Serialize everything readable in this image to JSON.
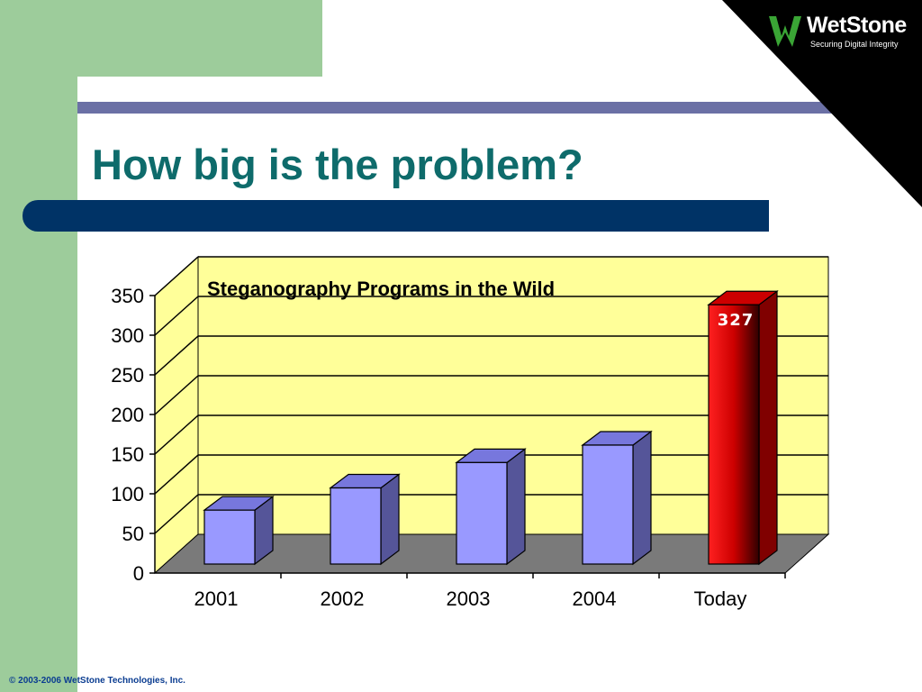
{
  "slide": {
    "title": "How big is the problem?",
    "logo_name": "WetStone",
    "logo_tagline": "Securing Digital Integrity",
    "footer": "© 2003-2006  WetStone Technologies, Inc."
  },
  "colors": {
    "title": "#0e6b6b",
    "green_panel": "#9dcc9b",
    "accent_line": "#6b70a5",
    "title_bar": "#003366",
    "plot_background": "#ffff99",
    "floor": "#7a7a7a",
    "bar_default": "#9999ff",
    "bar_highlight": "#ff0000"
  },
  "chart_data": {
    "type": "bar",
    "title": "Steganography Programs in the Wild",
    "categories": [
      "2001",
      "2002",
      "2003",
      "2004",
      "Today"
    ],
    "values": [
      68,
      96,
      128,
      150,
      327
    ],
    "highlight_index": 4,
    "data_labels": [
      "",
      "",
      "",
      "",
      "327"
    ],
    "ylim": [
      0,
      350
    ],
    "yticks": [
      0,
      50,
      100,
      150,
      200,
      250,
      300,
      350
    ],
    "xlabel": "",
    "ylabel": "",
    "grid": true,
    "style": "3d-columns"
  }
}
